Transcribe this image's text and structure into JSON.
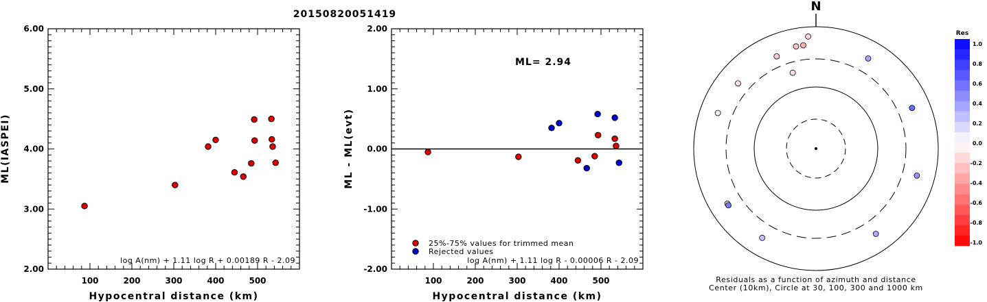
{
  "event_id": "20150820051419",
  "colors": {
    "used": "#dd0000",
    "rejected": "#0000cc"
  },
  "chart_data": [
    {
      "type": "scatter",
      "title": "",
      "xlabel": "Hypocentral distance (km)",
      "ylabel": "ML(IASPEI)",
      "xlim": [
        0,
        600
      ],
      "ylim": [
        2.0,
        6.0
      ],
      "xticks": [
        "100",
        "200",
        "300",
        "400",
        "500"
      ],
      "yticks": [
        "2.00",
        "3.00",
        "4.00",
        "5.00",
        "6.00"
      ],
      "formula": "log A(nm) + 1.11 log R + 0.00189 R - 2.09",
      "points": [
        {
          "x": 87,
          "y": 3.05
        },
        {
          "x": 303,
          "y": 3.4
        },
        {
          "x": 382,
          "y": 4.04
        },
        {
          "x": 400,
          "y": 4.15
        },
        {
          "x": 445,
          "y": 3.61
        },
        {
          "x": 466,
          "y": 3.54
        },
        {
          "x": 485,
          "y": 3.76
        },
        {
          "x": 492,
          "y": 4.49
        },
        {
          "x": 493,
          "y": 4.14
        },
        {
          "x": 533,
          "y": 4.5
        },
        {
          "x": 534,
          "y": 4.16
        },
        {
          "x": 536,
          "y": 4.04
        },
        {
          "x": 543,
          "y": 3.77
        }
      ]
    },
    {
      "type": "scatter",
      "title": "",
      "xlabel": "Hypocentral distance (km)",
      "ylabel": "ML - ML(evt)",
      "xlim": [
        0,
        600
      ],
      "ylim": [
        -2.0,
        2.0
      ],
      "xticks": [
        "100",
        "200",
        "300",
        "400",
        "500"
      ],
      "yticks": [
        "-2.00",
        "-1.00",
        "0.00",
        "1.00",
        "2.00"
      ],
      "ml_label": "ML= 2.94",
      "formula": "log A(nm) + 1.11 log R - 0.00006 R - 2.09",
      "legend": [
        "25%-75% values for trimmed mean",
        "Rejected values"
      ],
      "series": [
        {
          "name": "25%-75% values for trimmed mean",
          "points": [
            {
              "x": 87,
              "y": -0.05
            },
            {
              "x": 303,
              "y": -0.13
            },
            {
              "x": 445,
              "y": -0.19
            },
            {
              "x": 485,
              "y": -0.12
            },
            {
              "x": 493,
              "y": 0.23
            },
            {
              "x": 533,
              "y": 0.17
            },
            {
              "x": 536,
              "y": 0.05
            }
          ]
        },
        {
          "name": "Rejected values",
          "points": [
            {
              "x": 382,
              "y": 0.35
            },
            {
              "x": 400,
              "y": 0.43
            },
            {
              "x": 466,
              "y": -0.32
            },
            {
              "x": 492,
              "y": 0.58
            },
            {
              "x": 533,
              "y": 0.52
            },
            {
              "x": 543,
              "y": -0.23
            }
          ]
        }
      ]
    },
    {
      "type": "scatter",
      "subtype": "polar",
      "north_label": "N",
      "caption_line1": "Residuals as a function of azimuth and distance",
      "caption_line2": "Center (10km), Circle at 30, 100, 300 and 1000 km",
      "circles_km": [
        30,
        100,
        300,
        1000
      ],
      "colorbar": {
        "title": "Res",
        "ticks": [
          "1.0",
          "0.8",
          "0.6",
          "0.4",
          "0.2",
          "0.0",
          "-0.2",
          "-0.4",
          "-0.6",
          "-0.8",
          "-1.0"
        ],
        "range": [
          -1.0,
          1.0
        ]
      },
      "stations": [
        {
          "azimuth": 337,
          "distance_km": 445,
          "residual": -0.19
        },
        {
          "azimuth": 310,
          "distance_km": 466,
          "residual": -0.12
        },
        {
          "azimuth": 290,
          "distance_km": 1000,
          "residual": -0.05
        },
        {
          "azimuth": 343,
          "distance_km": 200,
          "residual": -0.13
        },
        {
          "azimuth": 349,
          "distance_km": 1000,
          "residual": -0.23
        },
        {
          "azimuth": 356,
          "distance_km": 700,
          "residual": -0.17
        },
        {
          "azimuth": 353,
          "distance_km": 1000,
          "residual": -0.31
        },
        {
          "azimuth": 30,
          "distance_km": 1000,
          "residual": 0.35
        },
        {
          "azimuth": 67,
          "distance_km": 1000,
          "residual": 0.58
        },
        {
          "azimuth": 105,
          "distance_km": 1000,
          "residual": 0.43
        },
        {
          "azimuth": 145,
          "distance_km": 1000,
          "residual": 0.32
        },
        {
          "azimuth": 211,
          "distance_km": 1000,
          "residual": 0.23
        },
        {
          "azimuth": 238,
          "distance_km": 1000,
          "residual": -0.17
        },
        {
          "azimuth": 237,
          "distance_km": 1000,
          "residual": 0.52
        }
      ]
    }
  ]
}
